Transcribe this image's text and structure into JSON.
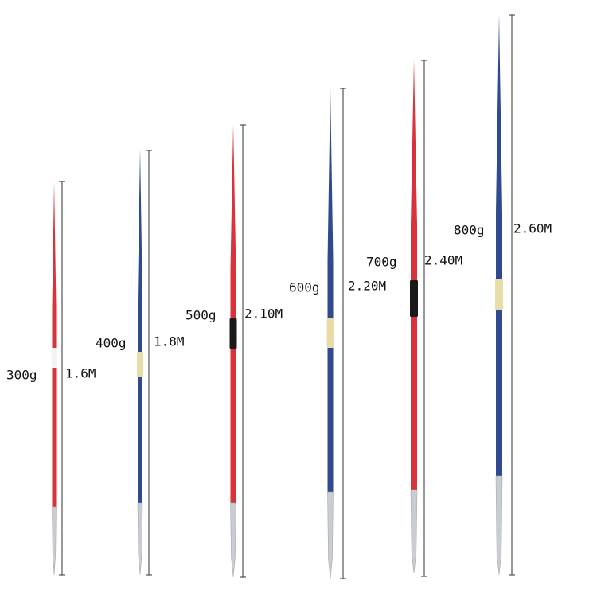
{
  "javelins": [
    {
      "weight": "300g",
      "length": "1.6M"
    },
    {
      "weight": "400g",
      "length": "1.8M"
    },
    {
      "weight": "500g",
      "length": "2.10M"
    },
    {
      "weight": "600g",
      "length": "2.20M"
    },
    {
      "weight": "700g",
      "length": "2.40M"
    },
    {
      "weight": "800g",
      "length": "2.60M"
    }
  ]
}
